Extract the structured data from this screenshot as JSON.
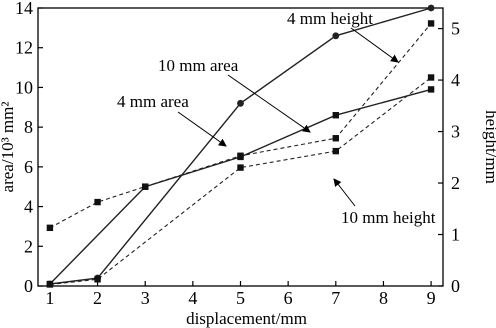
{
  "chart_data": {
    "type": "line",
    "title": "",
    "xlabel": "displacement/mm",
    "ylabel_left": "area/10³ mm²",
    "ylabel_right": "height/mm",
    "xlim": [
      0.75,
      9.25
    ],
    "ylim_left": [
      0,
      14
    ],
    "ylim_right": [
      0,
      5.4
    ],
    "x_ticks": [
      1,
      2,
      3,
      4,
      5,
      6,
      7,
      8,
      9
    ],
    "y_left_ticks": [
      0,
      2,
      4,
      6,
      8,
      10,
      12,
      14
    ],
    "y_right_ticks": [
      0,
      1,
      2,
      3,
      4,
      5
    ],
    "grid": false,
    "legend": "none",
    "series": [
      {
        "name": "4 mm area",
        "axis": "left",
        "line": "solid",
        "marker": "circle",
        "x": [
          1,
          2,
          5,
          7,
          9
        ],
        "y": [
          0.1,
          0.4,
          9.2,
          12.6,
          14.0
        ]
      },
      {
        "name": "10 mm area",
        "axis": "left",
        "line": "solid",
        "marker": "square",
        "x": [
          1,
          3,
          5,
          7,
          9
        ],
        "y": [
          0.1,
          5.0,
          6.5,
          8.6,
          9.9
        ]
      },
      {
        "name": "4 mm height",
        "axis": "right",
        "line": "dashed",
        "marker": "square",
        "x": [
          1,
          2,
          3,
          5,
          7,
          9
        ],
        "y": [
          1.13,
          1.63,
          1.93,
          2.53,
          2.87,
          5.1
        ]
      },
      {
        "name": "10 mm height",
        "axis": "right",
        "line": "dashed",
        "marker": "square",
        "x": [
          1,
          2,
          5,
          7,
          9
        ],
        "y": [
          0.03,
          0.13,
          2.3,
          2.62,
          4.05
        ]
      }
    ],
    "annotations": [
      {
        "text": "4 mm height",
        "series": "4 mm height"
      },
      {
        "text": "10 mm area",
        "series": "10 mm area"
      },
      {
        "text": "4 mm area",
        "series": "4 mm area"
      },
      {
        "text": "10 mm height",
        "series": "10 mm height"
      }
    ]
  }
}
